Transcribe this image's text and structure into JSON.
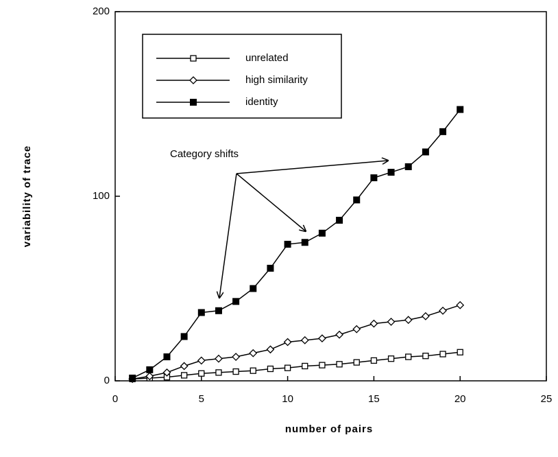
{
  "chart_data": {
    "type": "line",
    "x_label": "number of pairs",
    "y_label": "variability of trace",
    "annotation": "Category shifts",
    "x": [
      1,
      2,
      3,
      4,
      5,
      6,
      7,
      8,
      9,
      10,
      11,
      12,
      13,
      14,
      15,
      16,
      17,
      18,
      19,
      20
    ],
    "series": [
      {
        "name": "unrelated",
        "color": "#000000",
        "marker": "open-square",
        "values": [
          1,
          1.5,
          2,
          3,
          4,
          4.5,
          5,
          5.5,
          6.5,
          7,
          8,
          8.5,
          9,
          10,
          11,
          12,
          13,
          13.5,
          14.5,
          15.5
        ]
      },
      {
        "name": "high similarity",
        "color": "#000000",
        "marker": "diamond",
        "values": [
          1,
          2.5,
          4.5,
          8,
          11,
          12,
          13,
          15,
          17,
          21,
          22,
          23,
          25,
          28,
          31,
          32,
          33,
          35,
          38,
          41
        ]
      },
      {
        "name": "identity",
        "color": "#000000",
        "marker": "filled-square",
        "values": [
          1.5,
          6,
          13,
          24,
          37,
          38,
          43,
          50,
          61,
          74,
          75,
          80,
          87,
          98,
          110,
          113,
          116,
          124,
          135,
          147
        ]
      }
    ],
    "xlim": [
      0,
      25
    ],
    "xticks": [
      0,
      5,
      10,
      15,
      20,
      25
    ],
    "ylim": [
      0,
      200
    ],
    "yticks": [
      0,
      100,
      200
    ],
    "grid": false
  }
}
